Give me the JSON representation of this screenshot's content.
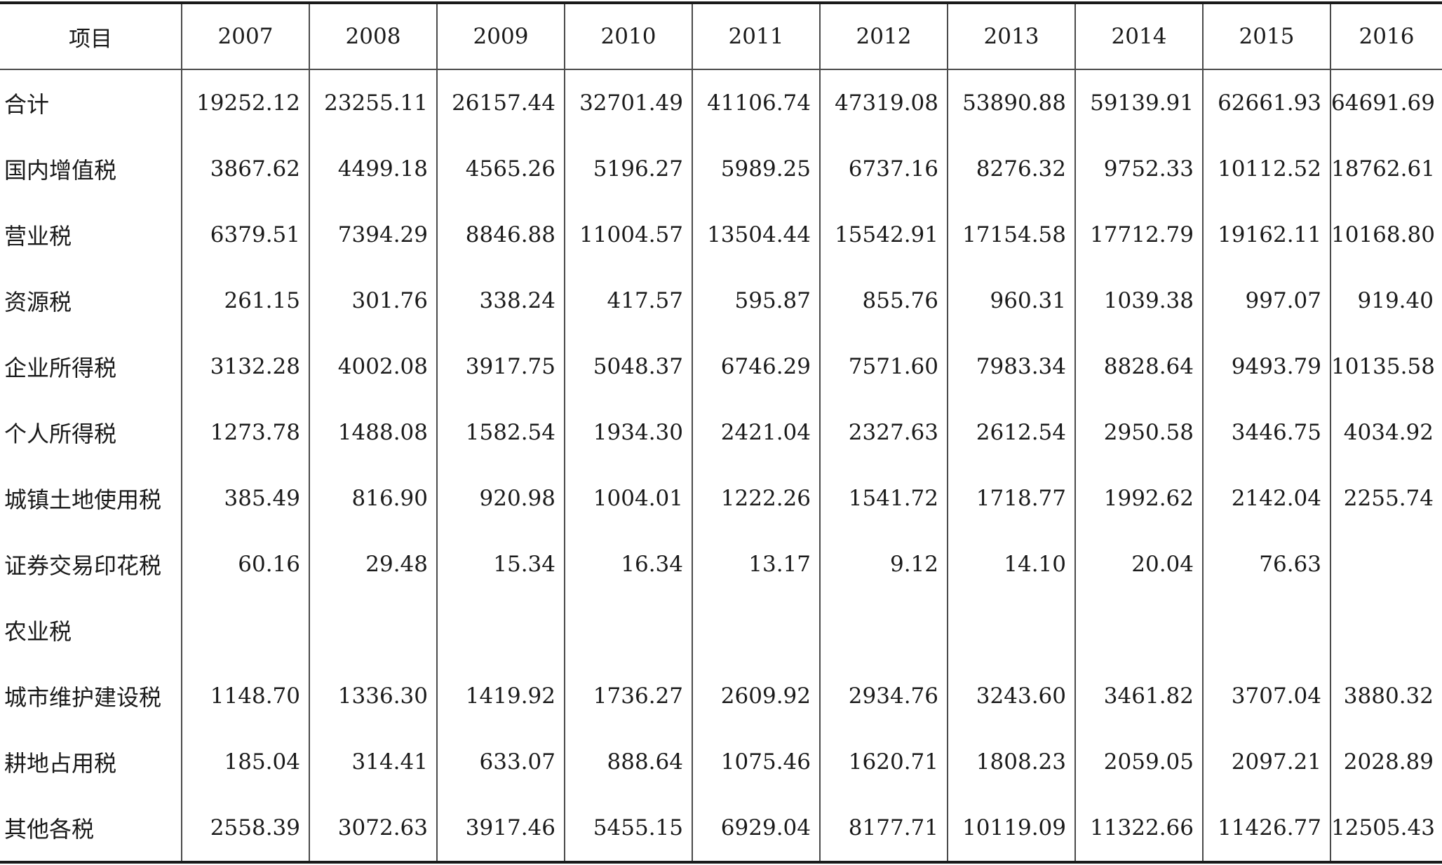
{
  "table": {
    "header_label": "项目",
    "years": [
      "2007",
      "2008",
      "2009",
      "2010",
      "2011",
      "2012",
      "2013",
      "2014",
      "2015",
      "2016"
    ],
    "rows": [
      {
        "label": "合计",
        "values": [
          "19252.12",
          "23255.11",
          "26157.44",
          "32701.49",
          "41106.74",
          "47319.08",
          "53890.88",
          "59139.91",
          "62661.93",
          "64691.69"
        ]
      },
      {
        "label": "国内增值税",
        "values": [
          "3867.62",
          "4499.18",
          "4565.26",
          "5196.27",
          "5989.25",
          "6737.16",
          "8276.32",
          "9752.33",
          "10112.52",
          "18762.61"
        ]
      },
      {
        "label": "营业税",
        "values": [
          "6379.51",
          "7394.29",
          "8846.88",
          "11004.57",
          "13504.44",
          "15542.91",
          "17154.58",
          "17712.79",
          "19162.11",
          "10168.80"
        ]
      },
      {
        "label": "资源税",
        "values": [
          "261.15",
          "301.76",
          "338.24",
          "417.57",
          "595.87",
          "855.76",
          "960.31",
          "1039.38",
          "997.07",
          "919.40"
        ]
      },
      {
        "label": "企业所得税",
        "values": [
          "3132.28",
          "4002.08",
          "3917.75",
          "5048.37",
          "6746.29",
          "7571.60",
          "7983.34",
          "8828.64",
          "9493.79",
          "10135.58"
        ]
      },
      {
        "label": "个人所得税",
        "values": [
          "1273.78",
          "1488.08",
          "1582.54",
          "1934.30",
          "2421.04",
          "2327.63",
          "2612.54",
          "2950.58",
          "3446.75",
          "4034.92"
        ]
      },
      {
        "label": "城镇土地使用税",
        "values": [
          "385.49",
          "816.90",
          "920.98",
          "1004.01",
          "1222.26",
          "1541.72",
          "1718.77",
          "1992.62",
          "2142.04",
          "2255.74"
        ]
      },
      {
        "label": "证券交易印花税",
        "values": [
          "60.16",
          "29.48",
          "15.34",
          "16.34",
          "13.17",
          "9.12",
          "14.10",
          "20.04",
          "76.63",
          ""
        ]
      },
      {
        "label": "农业税",
        "values": [
          "",
          "",
          "",
          "",
          "",
          "",
          "",
          "",
          "",
          ""
        ]
      },
      {
        "label": "城市维护建设税",
        "values": [
          "1148.70",
          "1336.30",
          "1419.92",
          "1736.27",
          "2609.92",
          "2934.76",
          "3243.60",
          "3461.82",
          "3707.04",
          "3880.32"
        ]
      },
      {
        "label": "耕地占用税",
        "values": [
          "185.04",
          "314.41",
          "633.07",
          "888.64",
          "1075.46",
          "1620.71",
          "1808.23",
          "2059.05",
          "2097.21",
          "2028.89"
        ]
      },
      {
        "label": "其他各税",
        "values": [
          "2558.39",
          "3072.63",
          "3917.46",
          "5455.15",
          "6929.04",
          "8177.71",
          "10119.09",
          "11322.66",
          "11426.77",
          "12505.43"
        ]
      }
    ]
  }
}
